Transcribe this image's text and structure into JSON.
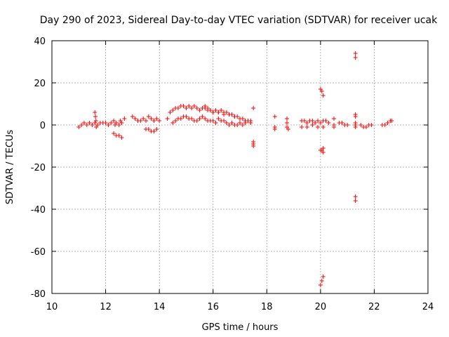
{
  "chart_data": {
    "type": "scatter",
    "title": "Day 290 of 2023, Sidereal Day-to-day VTEC variation (SDTVAR) for receiver ucak",
    "xlabel": "GPS time / hours",
    "ylabel": "SDTVAR / TECUs",
    "xlim": [
      10,
      24
    ],
    "ylim": [
      -80,
      40
    ],
    "xticks": [
      10,
      12,
      14,
      16,
      18,
      20,
      22,
      24
    ],
    "yticks": [
      -80,
      -60,
      -40,
      -20,
      0,
      20,
      40
    ],
    "xtick_labels": [
      "10",
      "12",
      "14",
      "16",
      "18",
      "20",
      "22",
      "24"
    ],
    "ytick_labels": [
      "-80",
      "-60",
      "-40",
      "-20",
      "0",
      "20",
      "40"
    ],
    "grid": true,
    "marker": "+",
    "color": "#ff0000",
    "series": [
      {
        "name": "SDTVAR",
        "x": [
          11.0,
          11.1,
          11.2,
          11.3,
          11.4,
          11.5,
          11.6,
          11.65,
          11.7,
          11.8,
          11.9,
          12.0,
          12.1,
          12.2,
          12.3,
          12.35,
          12.4,
          12.5,
          12.55,
          12.6,
          12.7,
          12.3,
          12.4,
          12.5,
          12.6,
          11.6,
          11.62,
          11.64,
          13.0,
          13.1,
          13.2,
          13.3,
          13.4,
          13.5,
          13.6,
          13.7,
          13.8,
          13.9,
          14.0,
          13.5,
          13.6,
          13.7,
          13.8,
          13.9,
          14.3,
          14.4,
          14.5,
          14.6,
          14.7,
          14.8,
          14.9,
          15.0,
          15.1,
          15.2,
          15.3,
          15.4,
          15.5,
          15.6,
          15.7,
          15.8,
          15.9,
          16.0,
          16.1,
          16.2,
          16.3,
          16.4,
          16.5,
          16.6,
          16.7,
          16.8,
          16.9,
          17.0,
          17.1,
          17.2,
          17.3,
          17.4,
          14.5,
          14.6,
          14.7,
          14.8,
          14.9,
          15.0,
          15.1,
          15.2,
          15.3,
          15.4,
          15.5,
          15.6,
          15.7,
          15.8,
          15.9,
          16.0,
          16.1,
          16.2,
          16.3,
          16.4,
          16.5,
          16.6,
          16.7,
          16.8,
          16.9,
          17.0,
          17.1,
          17.2,
          15.7,
          15.8,
          15.9,
          16.0,
          16.2,
          16.4,
          16.6,
          16.8,
          17.0,
          17.2,
          17.4,
          17.5,
          17.5,
          17.5,
          17.5,
          18.3,
          18.3,
          18.3,
          18.75,
          18.75,
          18.75,
          18.8,
          19.3,
          19.4,
          19.5,
          19.6,
          19.7,
          19.8,
          19.9,
          20.0,
          20.1,
          20.2,
          20.3,
          19.3,
          19.5,
          19.7,
          19.9,
          20.1,
          20.0,
          20.05,
          20.1,
          20.1,
          20.0,
          20.05,
          20.1,
          20.0,
          20.05,
          20.1,
          20.5,
          20.5,
          20.5,
          20.7,
          20.8,
          20.9,
          21.0,
          21.3,
          21.3,
          21.3,
          21.3,
          21.3,
          21.3,
          21.3,
          21.3,
          21.3,
          21.5,
          21.6,
          21.7,
          21.8,
          21.9,
          22.3,
          22.4,
          22.5,
          22.6,
          22.65
        ],
        "y": [
          -1,
          0,
          1,
          0,
          1,
          0,
          1,
          -1,
          0,
          1,
          1,
          1,
          0,
          1,
          2,
          0,
          1,
          0,
          2,
          1,
          3,
          -4,
          -5,
          -5,
          -6,
          6,
          4,
          2,
          4,
          3,
          2,
          2,
          3,
          2,
          4,
          3,
          2,
          3,
          2,
          -2,
          -2,
          -3,
          -3,
          -2,
          3,
          6,
          7,
          8,
          8,
          9,
          9,
          8,
          9,
          8,
          9,
          8,
          7,
          8,
          9,
          8,
          7,
          6,
          7,
          6,
          7,
          6,
          6,
          5,
          5,
          4,
          4,
          3,
          3,
          2,
          2,
          2,
          1,
          2,
          3,
          3,
          4,
          4,
          3,
          3,
          2,
          2,
          3,
          4,
          3,
          2,
          2,
          2,
          1,
          3,
          2,
          2,
          1,
          0,
          1,
          0,
          0,
          1,
          0,
          1,
          8,
          7,
          7,
          6,
          6,
          5,
          5,
          4,
          3,
          2,
          1,
          8,
          -8,
          -9,
          -10,
          4,
          -1,
          -2,
          3,
          1,
          -1,
          -2,
          2,
          2,
          1,
          2,
          2,
          1,
          2,
          1,
          2,
          2,
          1,
          -1,
          -1,
          0,
          -1,
          -1,
          17,
          16,
          14,
          -13,
          -12,
          -12,
          -11,
          -76,
          -74,
          -72,
          3,
          0,
          -1,
          1,
          1,
          0,
          0,
          34,
          32,
          5,
          4,
          1,
          0,
          -1,
          -34,
          -36,
          0,
          -1,
          -1,
          0,
          0,
          0,
          0,
          1,
          2,
          2
        ]
      }
    ]
  }
}
